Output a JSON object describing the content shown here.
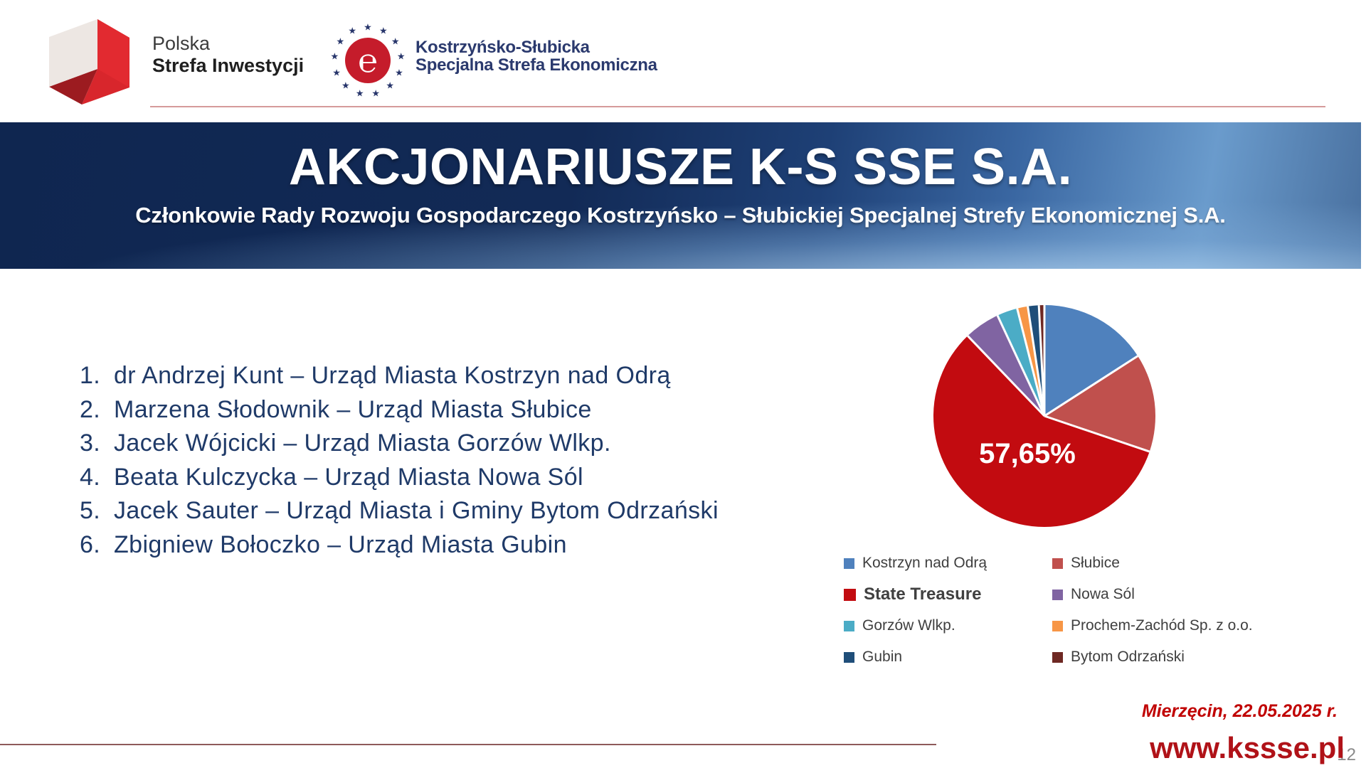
{
  "header": {
    "psi_logo": {
      "line1": "Polska",
      "line2": "Strefa Inwestycji"
    },
    "kssse_logo": {
      "line1": "Kostrzyńsko-Słubicka",
      "line2": "Specjalna Strefa Ekonomiczna"
    }
  },
  "banner": {
    "title": "AKCJONARIUSZE K-S SSE S.A.",
    "subtitle": "Członkowie Rady Rozwoju Gospodarczego Kostrzyńsko – Słubickiej Specjalnej Strefy Ekonomicznej S.A."
  },
  "members": [
    {
      "num": "1.",
      "text": "dr Andrzej Kunt – Urząd Miasta Kostrzyn nad Odrą"
    },
    {
      "num": "2.",
      "text": "Marzena Słodownik – Urząd Miasta Słubice"
    },
    {
      "num": "3.",
      "text": "Jacek Wójcicki – Urząd Miasta Gorzów Wlkp."
    },
    {
      "num": "4.",
      "text": "Beata Kulczycka – Urząd Miasta Nowa Sól"
    },
    {
      "num": "5.",
      "text": "Jacek Sauter – Urząd Miasta i Gminy Bytom Odrzański"
    },
    {
      "num": "6.",
      "text": "Zbigniew Bołoczko – Urząd Miasta Gubin"
    }
  ],
  "chart_data": {
    "type": "pie",
    "center_label": "57,65%",
    "start_angle_deg": 0,
    "direction": "clockwise",
    "legend_position": "bottom, two columns",
    "series": [
      {
        "name": "Kostrzyn nad Odrą",
        "value": 15.9,
        "color": "#4F81BD",
        "emphasis": false
      },
      {
        "name": "Słubice",
        "value": 14.3,
        "color": "#C0504D",
        "emphasis": false
      },
      {
        "name": "State Treasure",
        "value": 57.65,
        "color": "#C20B10",
        "emphasis": true,
        "data_label": "57,65%"
      },
      {
        "name": "Nowa Sól",
        "value": 5.2,
        "color": "#8064A2",
        "emphasis": false
      },
      {
        "name": "Gorzów Wlkp.",
        "value": 3.0,
        "color": "#4BACC6",
        "emphasis": false
      },
      {
        "name": "Prochem-Zachód Sp. z o.o.",
        "value": 1.55,
        "color": "#F79646",
        "emphasis": false
      },
      {
        "name": "Gubin",
        "value": 1.6,
        "color": "#1F4E79",
        "emphasis": false
      },
      {
        "name": "Bytom Odrzański",
        "value": 0.8,
        "color": "#6E2823",
        "emphasis": false
      }
    ]
  },
  "footer": {
    "date": "Mierzęcin, 22.05.2025 r.",
    "website": "www.kssse.pl",
    "page_number": "12"
  },
  "colors": {
    "banner_dark": "#122A56",
    "banner_light": "#7FA9D4",
    "list_text": "#1F3A68",
    "accent_red": "#C00000",
    "site_red": "#B01218",
    "header_rule": "#D59A9A",
    "footer_rule": "#8E5A5A"
  }
}
